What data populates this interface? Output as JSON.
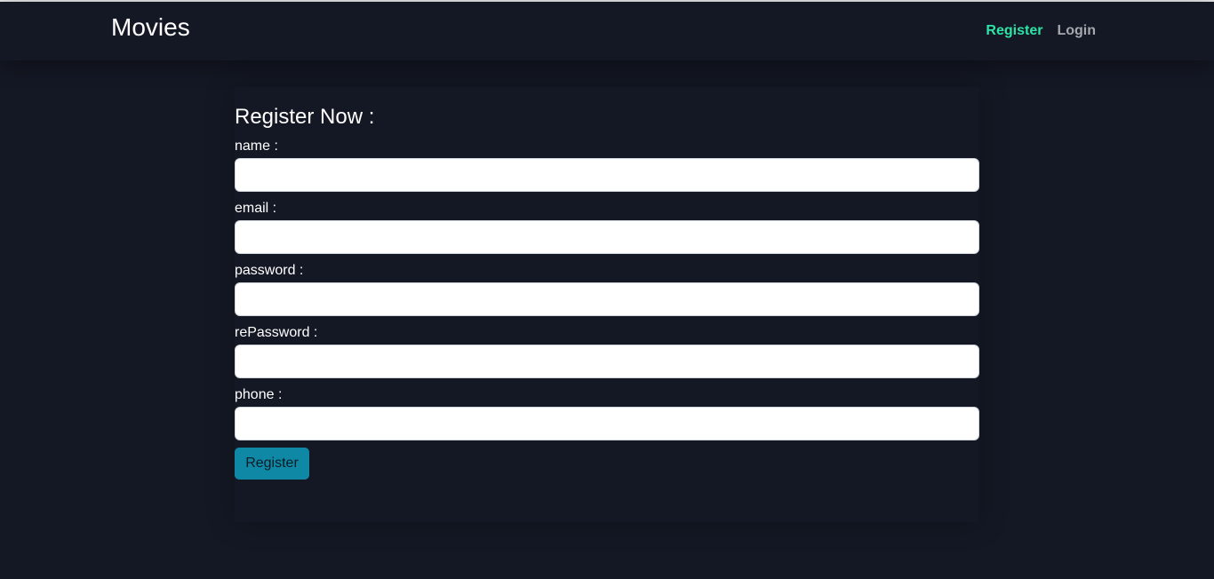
{
  "navbar": {
    "brand": "Movies",
    "links": [
      {
        "label": "Register",
        "active": true
      },
      {
        "label": "Login",
        "active": false
      }
    ],
    "active_color": "#2ee3a6",
    "inactive_color": "#a6a8ad"
  },
  "form": {
    "title": "Register Now :",
    "fields": [
      {
        "label": "name :",
        "value": "",
        "placeholder": ""
      },
      {
        "label": "email :",
        "value": "",
        "placeholder": ""
      },
      {
        "label": "password :",
        "value": "",
        "placeholder": ""
      },
      {
        "label": "rePassword :",
        "value": "",
        "placeholder": ""
      },
      {
        "label": "phone :",
        "value": "",
        "placeholder": ""
      }
    ],
    "submit_label": "Register",
    "submit_color": "#0f88a6"
  },
  "theme": {
    "background": "#141824"
  }
}
